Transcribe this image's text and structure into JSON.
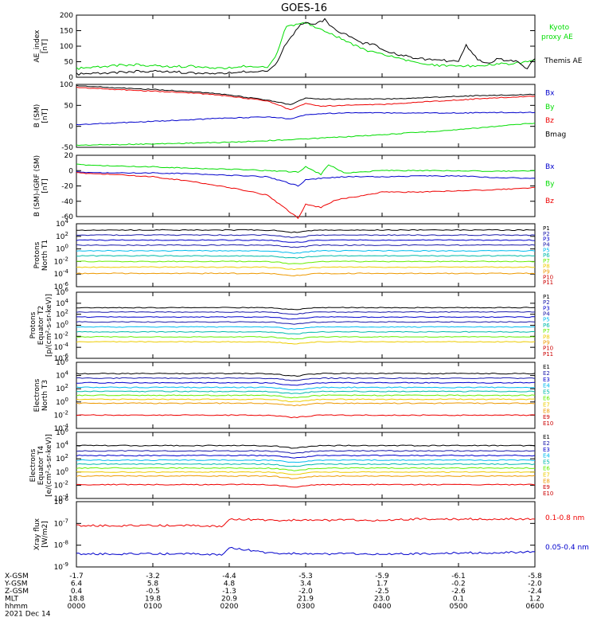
{
  "title": "GOES-16",
  "colors": {
    "black": "#000000",
    "green": "#00dd00",
    "blue": "#0000cc",
    "red": "#ee0000",
    "navy": "#1a1aaa",
    "cyan": "#00bbee",
    "teal": "#00bbaa",
    "lime": "#66ee00",
    "yellow": "#eecc00",
    "orange": "#ee9900",
    "darkred": "#cc0000"
  },
  "x_axis": {
    "row_labels": [
      "X-GSM",
      "Y-GSM",
      "Z-GSM",
      "MLT",
      "hhmm",
      "2021 Dec 14"
    ],
    "columns": [
      {
        "x_gsm": "-1.7",
        "y_gsm": "6.4",
        "z_gsm": "0.4",
        "mlt": "18.8",
        "hhmm": "0000"
      },
      {
        "x_gsm": "-3.2",
        "y_gsm": "5.8",
        "z_gsm": "-0.5",
        "mlt": "19.8",
        "hhmm": "0100"
      },
      {
        "x_gsm": "-4.4",
        "y_gsm": "4.8",
        "z_gsm": "-1.3",
        "mlt": "20.9",
        "hhmm": "0200"
      },
      {
        "x_gsm": "-5.3",
        "y_gsm": "3.4",
        "z_gsm": "-2.0",
        "mlt": "21.9",
        "hhmm": "0300"
      },
      {
        "x_gsm": "-5.9",
        "y_gsm": "1.7",
        "z_gsm": "-2.5",
        "mlt": "23.0",
        "hhmm": "0400"
      },
      {
        "x_gsm": "-6.1",
        "y_gsm": "-0.2",
        "z_gsm": "-2.6",
        "mlt": "0.1",
        "hhmm": "0500"
      },
      {
        "x_gsm": "-5.8",
        "y_gsm": "-2.0",
        "z_gsm": "-2.4",
        "mlt": "1.2",
        "hhmm": "0600"
      }
    ]
  },
  "chart_data": [
    {
      "id": "ae",
      "type": "line",
      "ylabel": [
        "AE_index",
        "[nT]"
      ],
      "ylim": [
        0,
        200
      ],
      "yticks": [
        "0",
        "50",
        "100",
        "150",
        "200"
      ],
      "legend": [
        {
          "text": "Kyoto",
          "color": "green"
        },
        {
          "text": "proxy AE",
          "color": "green"
        },
        {
          "text": "Themis AE",
          "color": "black"
        }
      ],
      "series": [
        {
          "name": "Kyoto proxy AE",
          "color": "green",
          "t": [
            0,
            0.25,
            0.5,
            0.75,
            1.0,
            1.25,
            1.5,
            1.75,
            2.0,
            2.25,
            2.5,
            2.6,
            2.75,
            3.0,
            3.25,
            3.5,
            3.75,
            4.0,
            4.25,
            4.5,
            4.75,
            5.0,
            5.25,
            5.5,
            5.75,
            6.0
          ],
          "y": [
            28,
            32,
            38,
            40,
            38,
            34,
            36,
            30,
            30,
            36,
            32,
            65,
            165,
            175,
            150,
            120,
            90,
            75,
            58,
            45,
            38,
            35,
            38,
            42,
            45,
            55
          ]
        },
        {
          "name": "Themis AE",
          "color": "black",
          "t": [
            0,
            0.25,
            0.5,
            0.75,
            1.0,
            1.25,
            1.5,
            1.75,
            2.0,
            2.25,
            2.5,
            2.6,
            2.75,
            2.9,
            3.0,
            3.1,
            3.25,
            3.4,
            3.5,
            3.6,
            3.75,
            3.9,
            4.0,
            4.25,
            4.5,
            4.75,
            5.0,
            5.1,
            5.25,
            5.4,
            5.5,
            5.75,
            5.9,
            6.0
          ],
          "y": [
            10,
            12,
            15,
            18,
            20,
            18,
            14,
            12,
            14,
            18,
            20,
            40,
            110,
            160,
            180,
            170,
            185,
            150,
            140,
            130,
            110,
            105,
            90,
            70,
            60,
            55,
            50,
            105,
            55,
            45,
            60,
            50,
            30,
            60
          ]
        }
      ]
    },
    {
      "id": "bsm",
      "type": "line",
      "ylabel": [
        "B (SM)",
        "[nT]"
      ],
      "ylim": [
        -50,
        100
      ],
      "yticks": [
        "-50",
        "0",
        "50",
        "100"
      ],
      "legend": [
        {
          "text": "Bx",
          "color": "blue"
        },
        {
          "text": "By",
          "color": "green"
        },
        {
          "text": "Bz",
          "color": "red"
        },
        {
          "text": "Bmag",
          "color": "black"
        }
      ],
      "series": [
        {
          "name": "Bmag",
          "color": "black",
          "t": [
            0,
            0.5,
            1.0,
            1.5,
            2.0,
            2.5,
            2.8,
            3.0,
            3.2,
            3.5,
            4.0,
            4.5,
            5.0,
            5.5,
            6.0
          ],
          "y": [
            97,
            92,
            88,
            83,
            75,
            62,
            52,
            68,
            65,
            65,
            65,
            68,
            72,
            74,
            76
          ]
        },
        {
          "name": "Bz",
          "color": "red",
          "t": [
            0,
            0.5,
            1.0,
            1.5,
            2.0,
            2.5,
            2.8,
            3.0,
            3.2,
            3.5,
            4.0,
            4.5,
            5.0,
            5.5,
            6.0
          ],
          "y": [
            93,
            88,
            84,
            80,
            72,
            60,
            40,
            55,
            48,
            50,
            52,
            58,
            63,
            68,
            72
          ]
        },
        {
          "name": "Bx",
          "color": "blue",
          "t": [
            0,
            0.5,
            1.0,
            1.5,
            2.0,
            2.5,
            2.8,
            3.0,
            3.2,
            3.5,
            4.0,
            4.5,
            5.0,
            5.5,
            6.0
          ],
          "y": [
            4,
            8,
            12,
            16,
            20,
            22,
            18,
            28,
            30,
            32,
            32,
            32,
            32,
            33,
            33
          ]
        },
        {
          "name": "By",
          "color": "green",
          "t": [
            0,
            1.0,
            2.0,
            3.0,
            4.0,
            5.0,
            6.0
          ],
          "y": [
            -45,
            -42,
            -38,
            -30,
            -20,
            -8,
            8
          ]
        }
      ]
    },
    {
      "id": "bigrf",
      "type": "line",
      "ylabel": [
        "B (SM)-IGRF (SM)",
        "[nT]"
      ],
      "ylim": [
        -60,
        20
      ],
      "yticks": [
        "-60",
        "-40",
        "-20",
        "0",
        "20"
      ],
      "legend": [
        {
          "text": "Bx",
          "color": "blue"
        },
        {
          "text": "By",
          "color": "green"
        },
        {
          "text": "Bz",
          "color": "red"
        }
      ],
      "series": [
        {
          "name": "By",
          "color": "green",
          "t": [
            0,
            0.5,
            1.0,
            1.5,
            2.0,
            2.5,
            2.9,
            3.0,
            3.2,
            3.3,
            3.5,
            4.0,
            4.5,
            5.0,
            5.5,
            6.0
          ],
          "y": [
            8,
            6,
            5,
            3,
            2,
            0,
            -2,
            5,
            -5,
            8,
            -3,
            0,
            0,
            0,
            -1,
            0
          ]
        },
        {
          "name": "Bx",
          "color": "blue",
          "t": [
            0,
            0.5,
            1.0,
            1.5,
            2.0,
            2.5,
            2.9,
            3.0,
            3.2,
            3.5,
            4.0,
            4.5,
            5.0,
            5.5,
            6.0
          ],
          "y": [
            -2,
            -3,
            -3,
            -4,
            -6,
            -8,
            -20,
            -12,
            -10,
            -8,
            -8,
            -7,
            -7,
            -9,
            -10
          ]
        },
        {
          "name": "Bz",
          "color": "red",
          "t": [
            0,
            0.5,
            1.0,
            1.5,
            2.0,
            2.5,
            2.9,
            3.0,
            3.2,
            3.4,
            3.6,
            4.0,
            4.5,
            5.0,
            5.5,
            6.0
          ],
          "y": [
            -3,
            -5,
            -8,
            -14,
            -22,
            -32,
            -62,
            -44,
            -48,
            -38,
            -35,
            -28,
            -28,
            -26,
            -25,
            -22
          ]
        }
      ]
    },
    {
      "id": "protons_t1",
      "type": "line",
      "scale": "log",
      "ylabel": [
        "Protons",
        "North T1"
      ],
      "ylim_exp": [
        -6,
        4
      ],
      "ytick_exps": [
        -6,
        -4,
        -2,
        0,
        2,
        4
      ],
      "legend": [
        {
          "text": "P1",
          "color": "black"
        },
        {
          "text": "P2",
          "color": "navy"
        },
        {
          "text": "P3",
          "color": "blue"
        },
        {
          "text": "P4",
          "color": "navy"
        },
        {
          "text": "P5",
          "color": "cyan"
        },
        {
          "text": "P6",
          "color": "teal"
        },
        {
          "text": "P7",
          "color": "lime"
        },
        {
          "text": "P8",
          "color": "yellow"
        },
        {
          "text": "P9",
          "color": "orange"
        },
        {
          "text": "P10",
          "color": "darkred"
        },
        {
          "text": "P11",
          "color": "darkred"
        }
      ],
      "channels_exp": [
        {
          "name": "P1",
          "color": "black",
          "level": 3.0
        },
        {
          "name": "P2",
          "color": "navy",
          "level": 2.2
        },
        {
          "name": "P3",
          "color": "blue",
          "level": 1.4
        },
        {
          "name": "P4",
          "color": "navy",
          "level": 0.6
        },
        {
          "name": "P5",
          "color": "cyan",
          "level": -0.3
        },
        {
          "name": "P6",
          "color": "teal",
          "level": -1.1
        },
        {
          "name": "P7",
          "color": "lime",
          "level": -2.0
        },
        {
          "name": "P8",
          "color": "yellow",
          "level": -2.9
        },
        {
          "name": "P9",
          "color": "orange",
          "level": -3.9
        }
      ]
    },
    {
      "id": "protons_t2",
      "type": "line",
      "scale": "log",
      "ylabel": [
        "Protons",
        "Equator T2",
        "[p/(cm²-s-sr-keV)]"
      ],
      "ylim_exp": [
        -6,
        6
      ],
      "ytick_exps": [
        -6,
        -4,
        -2,
        0,
        2,
        4,
        6
      ],
      "legend": [
        {
          "text": "P1",
          "color": "black"
        },
        {
          "text": "P2",
          "color": "navy"
        },
        {
          "text": "P3",
          "color": "blue"
        },
        {
          "text": "P4",
          "color": "navy"
        },
        {
          "text": "P5",
          "color": "cyan"
        },
        {
          "text": "P6",
          "color": "teal"
        },
        {
          "text": "P7",
          "color": "lime"
        },
        {
          "text": "P8",
          "color": "yellow"
        },
        {
          "text": "P9",
          "color": "orange"
        },
        {
          "text": "P10",
          "color": "darkred"
        },
        {
          "text": "P11",
          "color": "darkred"
        }
      ],
      "channels_exp": [
        {
          "name": "P1",
          "color": "black",
          "level": 3.2
        },
        {
          "name": "P2",
          "color": "navy",
          "level": 2.4
        },
        {
          "name": "P3",
          "color": "blue",
          "level": 1.5
        },
        {
          "name": "P4",
          "color": "navy",
          "level": 0.6
        },
        {
          "name": "P5",
          "color": "cyan",
          "level": -0.3
        },
        {
          "name": "P6",
          "color": "teal",
          "level": -1.2
        },
        {
          "name": "P7",
          "color": "lime",
          "level": -2.1
        },
        {
          "name": "P8",
          "color": "yellow",
          "level": -3.0
        }
      ]
    },
    {
      "id": "electrons_t3",
      "type": "line",
      "scale": "log",
      "ylabel": [
        "Electrons",
        "North T3"
      ],
      "ylim_exp": [
        -4,
        6
      ],
      "ytick_exps": [
        -4,
        -2,
        0,
        2,
        4,
        6
      ],
      "legend": [
        {
          "text": "E1",
          "color": "black"
        },
        {
          "text": "E2",
          "color": "navy"
        },
        {
          "text": "E3",
          "color": "blue"
        },
        {
          "text": "E4",
          "color": "cyan"
        },
        {
          "text": "E5",
          "color": "teal"
        },
        {
          "text": "E6",
          "color": "lime"
        },
        {
          "text": "E7",
          "color": "yellow"
        },
        {
          "text": "E8",
          "color": "orange"
        },
        {
          "text": "E9",
          "color": "darkred"
        },
        {
          "text": "E10",
          "color": "darkred"
        }
      ],
      "channels_exp": [
        {
          "name": "E1",
          "color": "black",
          "level": 4.3
        },
        {
          "name": "E2",
          "color": "navy",
          "level": 3.6
        },
        {
          "name": "E3",
          "color": "blue",
          "level": 2.9
        },
        {
          "name": "E4",
          "color": "cyan",
          "level": 2.2
        },
        {
          "name": "E5",
          "color": "teal",
          "level": 1.6
        },
        {
          "name": "E6",
          "color": "lime",
          "level": 1.0
        },
        {
          "name": "E7",
          "color": "yellow",
          "level": 0.4
        },
        {
          "name": "E8",
          "color": "orange",
          "level": -0.2
        },
        {
          "name": "E9",
          "color": "red",
          "level": -2.0
        }
      ]
    },
    {
      "id": "electrons_t4",
      "type": "line",
      "scale": "log",
      "ylabel": [
        "Electrons",
        "Equator T4",
        "[e/(cm²-s-sr-keV)]"
      ],
      "ylim_exp": [
        -4,
        6
      ],
      "ytick_exps": [
        -4,
        -2,
        0,
        2,
        4,
        6
      ],
      "legend": [
        {
          "text": "E1",
          "color": "black"
        },
        {
          "text": "E2",
          "color": "navy"
        },
        {
          "text": "E3",
          "color": "blue"
        },
        {
          "text": "E4",
          "color": "cyan"
        },
        {
          "text": "E5",
          "color": "teal"
        },
        {
          "text": "E6",
          "color": "lime"
        },
        {
          "text": "E7",
          "color": "yellow"
        },
        {
          "text": "E8",
          "color": "orange"
        },
        {
          "text": "E9",
          "color": "darkred"
        },
        {
          "text": "E10",
          "color": "darkred"
        }
      ],
      "channels_exp": [
        {
          "name": "E1",
          "color": "black",
          "level": 4.0
        },
        {
          "name": "E2",
          "color": "navy",
          "level": 3.2
        },
        {
          "name": "E3",
          "color": "blue",
          "level": 2.5
        },
        {
          "name": "E4",
          "color": "cyan",
          "level": 1.8
        },
        {
          "name": "E5",
          "color": "teal",
          "level": 1.2
        },
        {
          "name": "E6",
          "color": "lime",
          "level": 0.6
        },
        {
          "name": "E7",
          "color": "yellow",
          "level": 0.0
        },
        {
          "name": "E8",
          "color": "orange",
          "level": -0.6
        },
        {
          "name": "E9",
          "color": "red",
          "level": -1.9
        }
      ]
    },
    {
      "id": "xray",
      "type": "line",
      "scale": "log",
      "ylabel": [
        "Xray flux",
        "[W/m2]"
      ],
      "ylim_exp": [
        -9,
        -6
      ],
      "ytick_exps": [
        -9,
        -8,
        -7,
        -6
      ],
      "legend": [
        {
          "text": "0.1-0.8 nm",
          "color": "red"
        },
        {
          "text": "0.05-0.4 nm",
          "color": "blue"
        }
      ],
      "series": [
        {
          "name": "0.1-0.8 nm",
          "color": "red",
          "t": [
            0,
            1.0,
            1.5,
            1.9,
            2.0,
            2.1,
            2.5,
            3.0,
            3.5,
            4.0,
            4.5,
            5.0,
            5.5,
            6.0
          ],
          "y_exp": [
            -7.1,
            -7.1,
            -7.1,
            -7.15,
            -6.8,
            -6.8,
            -6.85,
            -6.85,
            -6.85,
            -6.85,
            -6.8,
            -6.8,
            -6.8,
            -6.8
          ]
        },
        {
          "name": "0.05-0.4 nm",
          "color": "blue",
          "t": [
            0,
            1.0,
            1.5,
            1.9,
            2.0,
            2.1,
            2.5,
            3.0,
            3.5,
            4.0,
            4.5,
            5.0,
            5.5,
            6.0
          ],
          "y_exp": [
            -8.4,
            -8.4,
            -8.4,
            -8.45,
            -8.1,
            -8.15,
            -8.35,
            -8.4,
            -8.4,
            -8.4,
            -8.4,
            -8.35,
            -8.35,
            -8.3
          ]
        }
      ]
    }
  ]
}
